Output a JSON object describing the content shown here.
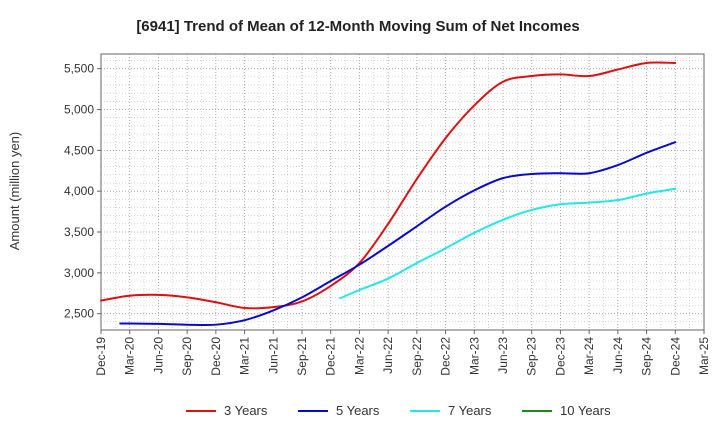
{
  "chart_data": {
    "type": "line",
    "title": "[6941]  Trend of Mean of 12-Month Moving Sum of Net Incomes",
    "xlabel": "",
    "ylabel": "Amount (million yen)",
    "ylim": [
      2300,
      5680
    ],
    "yticks": [
      2500,
      3000,
      3500,
      4000,
      4500,
      5000,
      5500
    ],
    "ytick_labels": [
      "2,500",
      "3,000",
      "3,500",
      "4,000",
      "4,500",
      "5,000",
      "5,500"
    ],
    "xtick_labels": [
      "Dec-19",
      "Mar-20",
      "Jun-20",
      "Sep-20",
      "Dec-20",
      "Mar-21",
      "Jun-21",
      "Sep-21",
      "Dec-21",
      "Mar-22",
      "Jun-22",
      "Sep-22",
      "Dec-22",
      "Mar-23",
      "Jun-23",
      "Sep-23",
      "Dec-23",
      "Mar-24",
      "Jun-24",
      "Sep-24",
      "Dec-24",
      "Mar-25"
    ],
    "grid": true,
    "legend_position": "bottom",
    "series": [
      {
        "name": "3 Years",
        "color": "#dd1111",
        "points": [
          [
            0,
            2660
          ],
          [
            1,
            2720
          ],
          [
            2,
            2730
          ],
          [
            3,
            2700
          ],
          [
            4,
            2640
          ],
          [
            5,
            2570
          ],
          [
            6,
            2580
          ],
          [
            7,
            2650
          ],
          [
            8,
            2840
          ],
          [
            9,
            3120
          ],
          [
            10,
            3600
          ],
          [
            11,
            4150
          ],
          [
            12,
            4650
          ],
          [
            13,
            5050
          ],
          [
            14,
            5340
          ],
          [
            15,
            5410
          ],
          [
            16,
            5430
          ],
          [
            17,
            5410
          ],
          [
            18,
            5490
          ],
          [
            19,
            5570
          ],
          [
            20,
            5570
          ]
        ]
      },
      {
        "name": "5 Years",
        "color": "#0a0acc",
        "points": [
          [
            0.67,
            2380
          ],
          [
            1,
            2380
          ],
          [
            2,
            2375
          ],
          [
            3,
            2365
          ],
          [
            4,
            2365
          ],
          [
            5,
            2420
          ],
          [
            6,
            2540
          ],
          [
            7,
            2700
          ],
          [
            8,
            2900
          ],
          [
            9,
            3100
          ],
          [
            10,
            3330
          ],
          [
            11,
            3570
          ],
          [
            12,
            3810
          ],
          [
            13,
            4010
          ],
          [
            14,
            4160
          ],
          [
            15,
            4210
          ],
          [
            16,
            4220
          ],
          [
            17,
            4220
          ],
          [
            18,
            4320
          ],
          [
            19,
            4470
          ],
          [
            20,
            4600
          ]
        ]
      },
      {
        "name": "7 Years",
        "color": "#22e8e8",
        "points": [
          [
            8.33,
            2690
          ],
          [
            9,
            2790
          ],
          [
            10,
            2930
          ],
          [
            11,
            3120
          ],
          [
            12,
            3300
          ],
          [
            13,
            3490
          ],
          [
            14,
            3650
          ],
          [
            15,
            3770
          ],
          [
            16,
            3840
          ],
          [
            17,
            3860
          ],
          [
            18,
            3890
          ],
          [
            19,
            3970
          ],
          [
            20,
            4030
          ]
        ]
      },
      {
        "name": "10 Years",
        "color": "#1a8a1a",
        "points": []
      }
    ]
  }
}
